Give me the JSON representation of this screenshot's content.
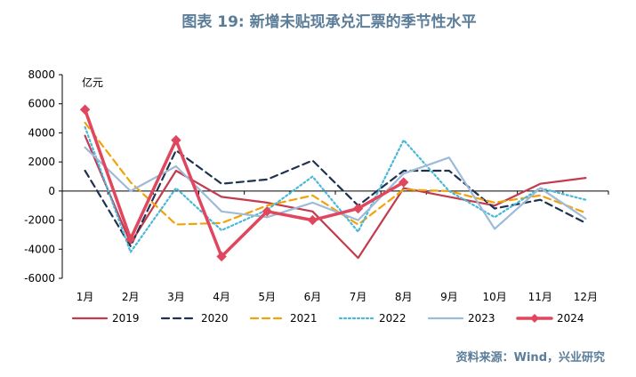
{
  "chart_data": {
    "type": "line",
    "title": "图表 19: 新增未贴现承兑汇票的季节性水平",
    "ylabel": "亿元",
    "source": "资料来源：Wind，兴业研究",
    "ylim": [
      -6000,
      8000
    ],
    "yticks": [
      8000,
      6000,
      4000,
      2000,
      0,
      -2000,
      -4000,
      -6000
    ],
    "ytick_labels": [
      "8000",
      "6000",
      "4000",
      "2000",
      "0",
      "-2000",
      "-4000",
      "-6000"
    ],
    "categories": [
      "1月",
      "2月",
      "3月",
      "4月",
      "5月",
      "6月",
      "7月",
      "8月",
      "9月",
      "10月",
      "11月",
      "12月"
    ],
    "series": [
      {
        "name": "2019",
        "color": "#c23b4e",
        "dash": "solid",
        "width": 2.2,
        "values": [
          3800,
          -3600,
          1400,
          -400,
          -800,
          -1400,
          -4600,
          200,
          -400,
          -1000,
          500,
          900
        ]
      },
      {
        "name": "2020",
        "color": "#1f3350",
        "dash": "dashed",
        "width": 2.2,
        "values": [
          1400,
          -3800,
          2800,
          500,
          800,
          2100,
          -1000,
          1400,
          1400,
          -1200,
          -600,
          -2200
        ]
      },
      {
        "name": "2021",
        "color": "#f0a30a",
        "dash": "dashed",
        "width": 2.2,
        "values": [
          4700,
          600,
          -2300,
          -2200,
          -1000,
          -300,
          -2300,
          100,
          0,
          -800,
          -300,
          -1500
        ]
      },
      {
        "name": "2022",
        "color": "#4ab8d8",
        "dash": "dotted",
        "width": 2.2,
        "values": [
          4400,
          -4200,
          200,
          -2700,
          -1300,
          1000,
          -2800,
          3500,
          0,
          -1800,
          200,
          -600
        ]
      },
      {
        "name": "2023",
        "color": "#9dbbd8",
        "dash": "solid",
        "width": 2.2,
        "values": [
          3000,
          0,
          1700,
          -1400,
          -1800,
          -800,
          -2000,
          1200,
          2300,
          -2600,
          200,
          -1900
        ]
      },
      {
        "name": "2024",
        "color": "#e0475e",
        "dash": "solid",
        "width": 3.5,
        "marker": "diamond",
        "values": [
          5600,
          -3300,
          3500,
          -4500,
          -1400,
          -2000,
          -1200,
          600,
          null,
          null,
          null,
          null
        ]
      }
    ],
    "legend_position": "bottom"
  }
}
